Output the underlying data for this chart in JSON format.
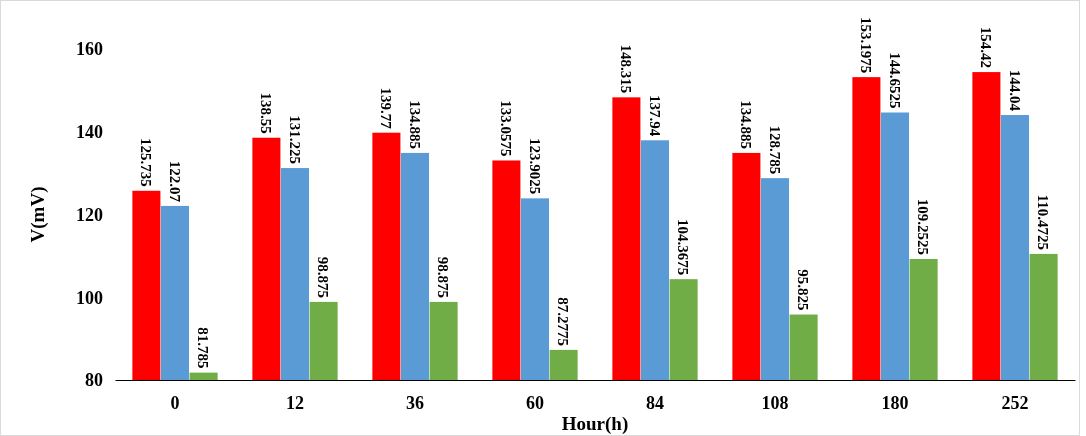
{
  "chart_data": {
    "type": "bar",
    "xlabel": "Hour(h)",
    "ylabel": "V(mV)",
    "categories": [
      "0",
      "12",
      "36",
      "60",
      "84",
      "108",
      "180",
      "252"
    ],
    "series": [
      {
        "color": "#ff0000",
        "values": [
          125.735,
          138.55,
          139.77,
          133.0575,
          148.315,
          134.885,
          153.1975,
          154.42
        ]
      },
      {
        "color": "#5b9bd5",
        "values": [
          122.07,
          131.225,
          134.885,
          123.9025,
          137.94,
          128.785,
          144.6525,
          144.04
        ]
      },
      {
        "color": "#70ad47",
        "values": [
          81.785,
          98.875,
          98.875,
          87.2775,
          104.3675,
          95.825,
          109.2525,
          110.4725
        ]
      }
    ],
    "ylim": [
      80,
      160
    ],
    "yticks": [
      80,
      100,
      120,
      140,
      160
    ],
    "grid": false,
    "data_labels": true
  }
}
